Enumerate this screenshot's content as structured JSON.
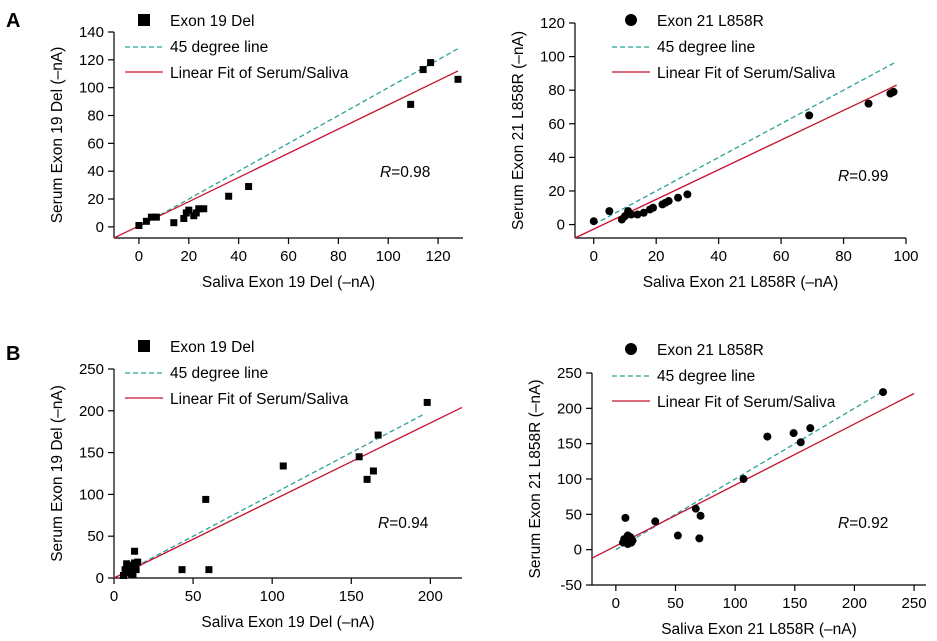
{
  "panel_labels": {
    "A": "A",
    "B": "B"
  },
  "colors": {
    "points": "#000000",
    "diagonal": "#2aa198",
    "fit": "#c8102e"
  },
  "chart_data": [
    {
      "id": "A-left",
      "type": "scatter",
      "marker": "square",
      "xlabel": "Saliva Exon 19 Del (–nA)",
      "ylabel": "Serum Exon 19 Del (–nA)",
      "xlim": [
        -10,
        130
      ],
      "ylim": [
        -8,
        140
      ],
      "xticks": [
        0,
        20,
        40,
        60,
        80,
        100,
        120
      ],
      "yticks": [
        0,
        20,
        40,
        60,
        80,
        100,
        120,
        140
      ],
      "legend": [
        "Exon 19 Del",
        "45 degree line",
        "Linear Fit of Serum/Saliva"
      ],
      "annotation": {
        "italic": "R",
        "rest": "=0.98"
      },
      "series": [
        {
          "name": "Exon 19 Del",
          "x": [
            0,
            3,
            5,
            7,
            14,
            18,
            19,
            20,
            22,
            23,
            24,
            26,
            36,
            44,
            109,
            114,
            117,
            128
          ],
          "y": [
            1,
            4,
            7,
            7,
            3,
            6,
            10,
            12,
            8,
            10,
            13,
            13,
            22,
            29,
            88,
            113,
            118,
            106
          ]
        }
      ],
      "diagonal": [
        [
          0,
          0
        ],
        [
          128,
          128
        ]
      ],
      "fit": [
        [
          -10,
          -8
        ],
        [
          128,
          112
        ]
      ]
    },
    {
      "id": "A-right",
      "type": "scatter",
      "marker": "circle",
      "xlabel": "Saliva Exon 21 L858R (–nA)",
      "ylabel": "Serum Exon 21 L858R (–nA)",
      "xlim": [
        -6,
        100
      ],
      "ylim": [
        -8,
        120
      ],
      "xticks": [
        0,
        20,
        40,
        60,
        80,
        100
      ],
      "yticks": [
        0,
        20,
        40,
        60,
        80,
        100,
        120
      ],
      "legend": [
        "Exon 21 L858R",
        "45 degree line",
        "Linear Fit of Serum/Saliva"
      ],
      "annotation": {
        "italic": "R",
        "rest": "=0.99"
      },
      "series": [
        {
          "name": "Exon 21 L858R",
          "x": [
            0,
            5,
            9,
            10,
            11,
            12,
            14,
            16,
            18,
            19,
            22,
            23,
            24,
            27,
            30,
            69,
            88,
            95,
            96
          ],
          "y": [
            2,
            8,
            3,
            5,
            8,
            6,
            6,
            7,
            9,
            10,
            12,
            13,
            14,
            16,
            18,
            65,
            72,
            78,
            79
          ]
        }
      ],
      "diagonal": [
        [
          0,
          0
        ],
        [
          97,
          97
        ]
      ],
      "fit": [
        [
          -6,
          -8
        ],
        [
          97,
          83
        ]
      ]
    },
    {
      "id": "B-left",
      "type": "scatter",
      "marker": "square",
      "xlabel": "Saliva Exon 19 Del (–nA)",
      "ylabel": "Serum Exon 19 Del (–nA)",
      "xlim": [
        0,
        220
      ],
      "ylim": [
        0,
        250
      ],
      "xticks": [
        0,
        50,
        100,
        150,
        200
      ],
      "yticks": [
        0,
        50,
        100,
        150,
        200,
        250
      ],
      "legend": [
        "Exon 19 Del",
        "45 degree line",
        "Linear Fit of Serum/Saliva"
      ],
      "annotation": {
        "italic": "R",
        "rest": "=0.94"
      },
      "series": [
        {
          "name": "Exon 19 Del",
          "x": [
            6,
            7,
            8,
            8,
            9,
            10,
            10,
            11,
            11,
            12,
            12,
            13,
            13,
            14,
            15,
            43,
            58,
            60,
            107,
            155,
            160,
            164,
            167,
            198
          ],
          "y": [
            3,
            10,
            6,
            17,
            12,
            8,
            14,
            5,
            15,
            4,
            10,
            18,
            32,
            10,
            19,
            10,
            94,
            10,
            134,
            145,
            118,
            128,
            171,
            210
          ]
        }
      ],
      "diagonal": [
        [
          0,
          0
        ],
        [
          195,
          195
        ]
      ],
      "fit": [
        [
          0,
          0
        ],
        [
          220,
          204
        ]
      ]
    },
    {
      "id": "B-right",
      "type": "scatter",
      "marker": "circle",
      "xlabel": "Saliva Exon 21 L858R (–nA)",
      "ylabel": "Serum Exon 21 L858R (–nA)",
      "xlim": [
        -20,
        260
      ],
      "ylim": [
        -50,
        250
      ],
      "xticks": [
        0,
        50,
        100,
        150,
        200,
        250
      ],
      "yticks": [
        -50,
        0,
        50,
        100,
        150,
        200,
        250
      ],
      "legend": [
        "Exon 21 L858R",
        "45 degree line",
        "Linear Fit of Serum/Saliva"
      ],
      "annotation": {
        "italic": "R",
        "rest": "=0.92"
      },
      "series": [
        {
          "name": "Exon 21 L858R",
          "x": [
            6,
            7,
            8,
            9,
            10,
            10,
            11,
            12,
            13,
            14,
            33,
            52,
            67,
            70,
            71,
            107,
            127,
            149,
            155,
            163,
            224
          ],
          "y": [
            10,
            15,
            45,
            13,
            8,
            20,
            12,
            18,
            10,
            13,
            40,
            20,
            58,
            16,
            48,
            100,
            160,
            165,
            152,
            172,
            223
          ]
        }
      ],
      "diagonal": [
        [
          0,
          0
        ],
        [
          225,
          225
        ]
      ],
      "fit": [
        [
          -20,
          -12
        ],
        [
          250,
          221
        ]
      ]
    }
  ]
}
